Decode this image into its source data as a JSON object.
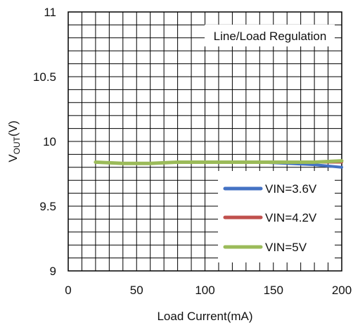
{
  "chart_data": {
    "type": "line",
    "title": "Line/Load Regulation",
    "xlabel": "Load Current(mA)",
    "ylabel": "V",
    "ylabel_sub": "OUT",
    "ylabel_suffix": "(V)",
    "xlim": [
      0,
      200
    ],
    "ylim": [
      9,
      11
    ],
    "xticks": [
      "0",
      "50",
      "100",
      "150",
      "200"
    ],
    "yticks": [
      "9",
      "9.5",
      "10",
      "10.5",
      "11"
    ],
    "grid": true,
    "legend_position": "bottom-right",
    "series": [
      {
        "name": "VIN=3.6V",
        "color": "#4472c4",
        "x": [
          20,
          40,
          60,
          80,
          100,
          120,
          140,
          160,
          180,
          200
        ],
        "y": [
          9.84,
          9.83,
          9.83,
          9.84,
          9.84,
          9.84,
          9.84,
          9.83,
          9.82,
          9.8
        ]
      },
      {
        "name": "VIN=4.2V",
        "color": "#c0504d",
        "x": [
          20,
          40,
          60,
          80,
          100,
          120,
          140,
          160,
          180,
          200
        ],
        "y": [
          9.84,
          9.83,
          9.83,
          9.84,
          9.84,
          9.84,
          9.84,
          9.84,
          9.84,
          9.84
        ]
      },
      {
        "name": "VIN=5V",
        "color": "#9bbb59",
        "x": [
          20,
          40,
          60,
          80,
          100,
          120,
          140,
          160,
          180,
          200
        ],
        "y": [
          9.84,
          9.83,
          9.83,
          9.84,
          9.84,
          9.84,
          9.84,
          9.84,
          9.84,
          9.85
        ]
      }
    ]
  }
}
